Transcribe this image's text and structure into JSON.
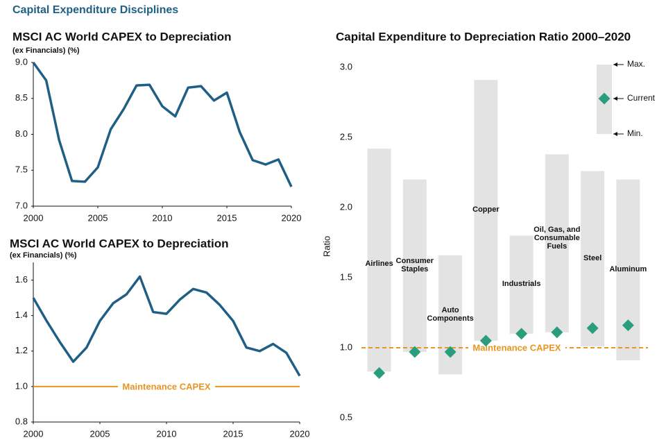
{
  "title": "Capital Expenditure Disciplines",
  "chart_data": [
    {
      "type": "line",
      "title": "MSCI AC World CAPEX to Depreciation",
      "subtitle": "(ex Financials) (%)",
      "x": [
        2000,
        2001,
        2002,
        2003,
        2004,
        2005,
        2006,
        2007,
        2008,
        2009,
        2010,
        2011,
        2012,
        2013,
        2014,
        2015,
        2016,
        2017,
        2018,
        2019,
        2020
      ],
      "series": [
        {
          "color": "#1f5f85",
          "values": [
            9.0,
            8.75,
            7.92,
            7.35,
            7.34,
            7.54,
            8.07,
            8.35,
            8.68,
            8.69,
            8.39,
            8.25,
            8.65,
            8.67,
            8.47,
            8.58,
            8.03,
            7.64,
            7.58,
            7.65,
            7.27
          ]
        }
      ],
      "xlim": [
        2000,
        2020
      ],
      "xticks": [
        2000,
        2005,
        2010,
        2015,
        2020
      ],
      "ylim": [
        7.0,
        9.0
      ],
      "yticks": [
        {
          "value": 7.0,
          "label": "7.0"
        },
        {
          "value": 7.5,
          "label": "7.5"
        },
        {
          "value": 8.0,
          "label": "8.0"
        },
        {
          "value": 8.5,
          "label": "8.5"
        },
        {
          "value": 9.0,
          "label": "9.0"
        }
      ]
    },
    {
      "type": "line",
      "title": "MSCI AC World CAPEX to Depreciation",
      "subtitle": "(ex Financials) (%)",
      "x": [
        2000,
        2001,
        2002,
        2003,
        2004,
        2005,
        2006,
        2007,
        2008,
        2009,
        2010,
        2011,
        2012,
        2013,
        2014,
        2015,
        2016,
        2017,
        2018,
        2019,
        2020
      ],
      "series": [
        {
          "color": "#1f5f85",
          "values": [
            1.5,
            1.37,
            1.25,
            1.14,
            1.22,
            1.37,
            1.47,
            1.52,
            1.62,
            1.42,
            1.41,
            1.49,
            1.55,
            1.53,
            1.46,
            1.37,
            1.22,
            1.2,
            1.24,
            1.19,
            1.06
          ]
        }
      ],
      "xlim": [
        2000,
        2020
      ],
      "xticks": [
        2000,
        2005,
        2010,
        2015,
        2020
      ],
      "ylim": [
        0.8,
        1.7
      ],
      "yticks": [
        0.8,
        {
          "value": 1.0,
          "label": "1.0"
        },
        1.2,
        1.4,
        1.6
      ],
      "reference_line": {
        "value": 1.0,
        "label": "Maintenance CAPEX",
        "color": "#e8951f"
      }
    },
    {
      "type": "range",
      "title": "Capital Expenditure to Depreciation Ratio 2000–2020",
      "y_label": "Ratio",
      "categories": [
        "Airlines",
        "Consumer Staples",
        "Auto Components",
        "Copper",
        "Industrials",
        "Oil, Gas, and Consumable Fuels",
        "Steel",
        "Aluminum"
      ],
      "series": [
        {
          "name": "Min.",
          "color": "#e3e3e3",
          "values": [
            0.83,
            0.97,
            0.81,
            1.05,
            1.1,
            1.11,
            1.01,
            0.91
          ]
        },
        {
          "name": "Max.",
          "color": "#e3e3e3",
          "values": [
            2.42,
            2.2,
            1.66,
            2.91,
            1.8,
            2.38,
            2.26,
            2.2
          ]
        },
        {
          "name": "Current",
          "color": "#2a9d7f",
          "values": [
            0.82,
            0.97,
            0.97,
            1.05,
            1.1,
            1.11,
            1.14,
            1.16
          ]
        }
      ],
      "ylim": [
        0.5,
        3.05
      ],
      "yticks": [
        0.5,
        {
          "value": 1.0,
          "label": "1.0"
        },
        1.5,
        {
          "value": 2.0,
          "label": "2.0"
        },
        2.5,
        {
          "value": 3.0,
          "label": "3.0"
        }
      ],
      "reference_line": {
        "value": 1.0,
        "label": "Maintenance CAPEX",
        "color": "#e8951f"
      }
    }
  ]
}
